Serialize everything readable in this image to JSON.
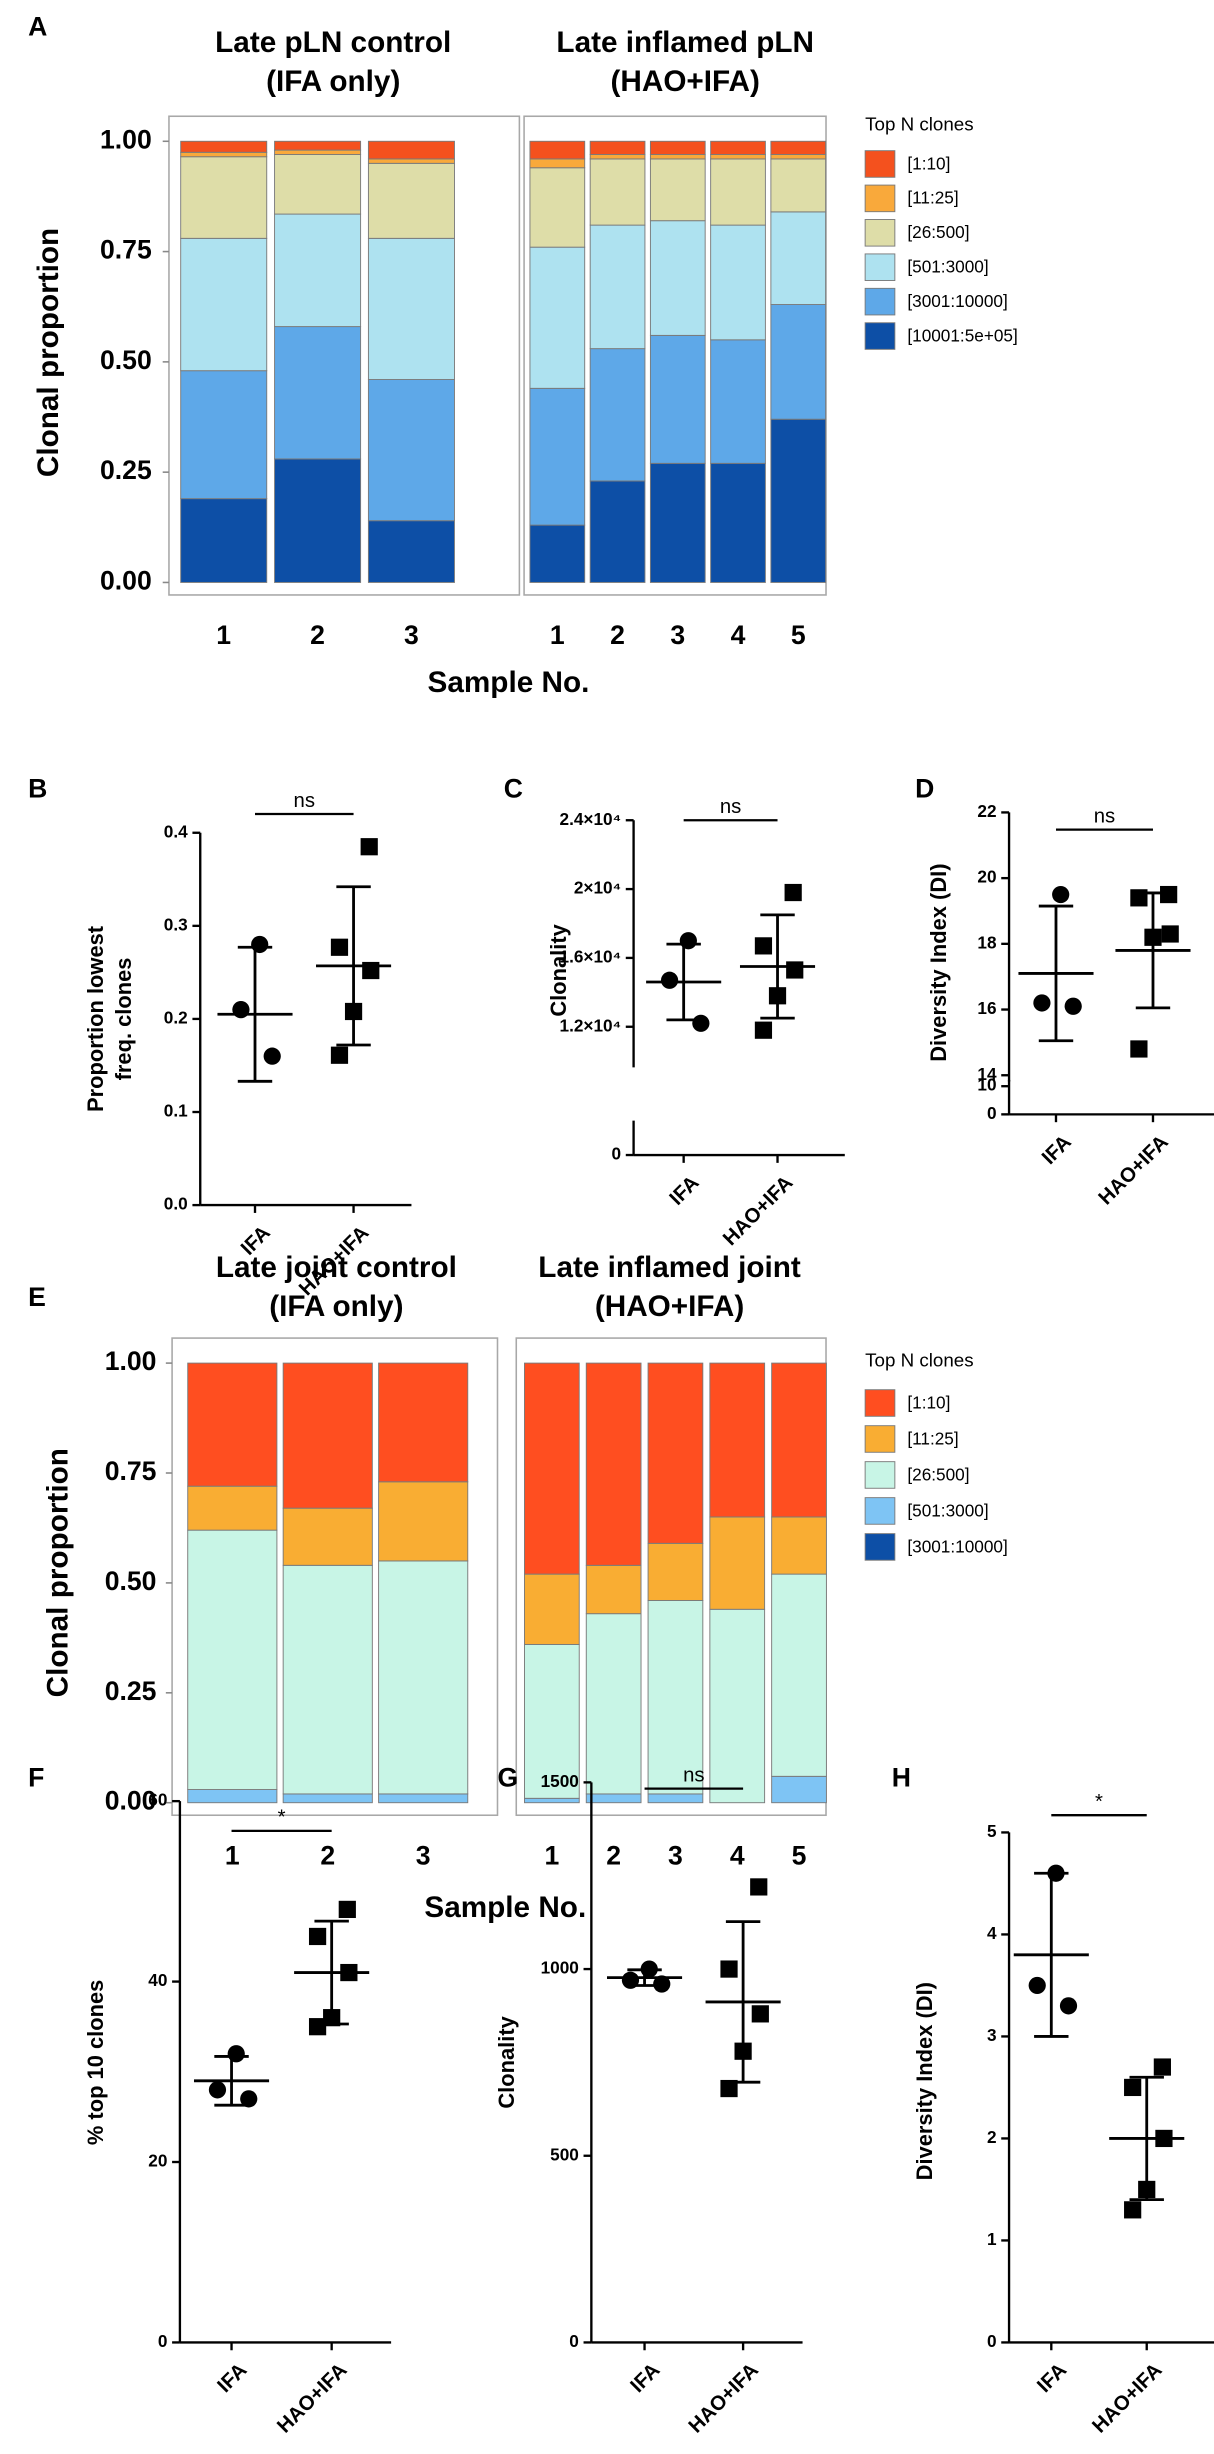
{
  "chart_data": [
    {
      "type": "stacked_bar",
      "panel": "A",
      "title": [
        "Late pLN control",
        "(IFA only)"
      ],
      "ylabel": "Clonal proportion",
      "xlabel": "Sample No.",
      "categories": [
        "1",
        "2",
        "3"
      ],
      "ylim": [
        0,
        1
      ],
      "yticks": [
        {
          "value": 0,
          "label": "0.00"
        },
        0.25,
        {
          "value": 0.5,
          "label": "0.50"
        },
        0.75,
        {
          "value": 1,
          "label": "1.00"
        }
      ],
      "series": [
        {
          "color": "#f4511e",
          "values": [
            0.025,
            0.02,
            0.04
          ]
        },
        {
          "color": "#f9a93b",
          "values": [
            0.01,
            0.01,
            0.01
          ]
        },
        {
          "color": "#dedda8",
          "values": [
            0.185,
            0.135,
            0.17
          ]
        },
        {
          "color": "#aee2f0",
          "values": [
            0.3,
            0.255,
            0.32
          ]
        },
        {
          "color": "#5ea8e8",
          "values": [
            0.29,
            0.3,
            0.32
          ]
        },
        {
          "color": "#0d4fa6",
          "values": [
            0.19,
            0.28,
            0.14
          ]
        }
      ]
    },
    {
      "type": "stacked_bar",
      "title": [
        "Late inflamed pLN",
        "(HAO+IFA)"
      ],
      "legend_title": "Top N clones",
      "categories": [
        "1",
        "2",
        "3",
        "4",
        "5"
      ],
      "ylim": [
        0,
        1
      ],
      "series": [
        {
          "name": "[1:10]",
          "color": "#f4511e",
          "values": [
            0.04,
            0.03,
            0.03,
            0.03,
            0.03
          ]
        },
        {
          "name": "[11:25]",
          "color": "#f9a93b",
          "values": [
            0.02,
            0.01,
            0.01,
            0.01,
            0.01
          ]
        },
        {
          "name": "[26:500]",
          "color": "#dedda8",
          "values": [
            0.18,
            0.15,
            0.14,
            0.15,
            0.12
          ]
        },
        {
          "name": "[501:3000]",
          "color": "#aee2f0",
          "values": [
            0.32,
            0.28,
            0.26,
            0.26,
            0.21
          ]
        },
        {
          "name": "[3001:10000]",
          "color": "#5ea8e8",
          "values": [
            0.31,
            0.3,
            0.29,
            0.28,
            0.26
          ]
        },
        {
          "name": "[10001:5e+05]",
          "color": "#0d4fa6",
          "values": [
            0.13,
            0.23,
            0.27,
            0.27,
            0.37
          ]
        }
      ]
    },
    {
      "type": "dot",
      "panel": "B",
      "ylabel": [
        "Proportion lowest",
        "freq. clones"
      ],
      "categories": [
        "IFA",
        "HAO+IFA"
      ],
      "markers": [
        "circle",
        "square"
      ],
      "color": "#000000",
      "points": [
        [
          0.28,
          0.21,
          0.16
        ],
        [
          0.385,
          0.277,
          0.252,
          0.208,
          0.161
        ]
      ],
      "means": [
        0.205,
        0.257
      ],
      "sd": [
        0.072,
        0.085
      ],
      "ylim": [
        0,
        0.4
      ],
      "yticks": [
        {
          "value": 0,
          "label": "0.0"
        },
        0.1,
        0.2,
        0.3,
        0.4
      ],
      "annotation": "ns"
    },
    {
      "type": "dot",
      "panel": "C",
      "ylabel": "Clonality",
      "categories": [
        "IFA",
        "HAO+IFA"
      ],
      "markers": [
        "circle",
        "square"
      ],
      "color": "#000000",
      "points": [
        [
          17000,
          14700,
          12200
        ],
        [
          19800,
          16700,
          15300,
          13800,
          11800
        ]
      ],
      "means": [
        14600,
        15500
      ],
      "sd": [
        2200,
        3000
      ],
      "ylim": [
        0,
        24000
      ],
      "ybreak": [
        2000,
        10000
      ],
      "yticks": [
        0,
        {
          "value": 12000,
          "label": "1.2×10⁴"
        },
        {
          "value": 16000,
          "label": "1.6×10⁴"
        },
        {
          "value": 20000,
          "label": "2×10⁴"
        },
        {
          "value": 24000,
          "label": "2.4×10⁴"
        }
      ],
      "annotation": "ns"
    },
    {
      "type": "dot",
      "panel": "D",
      "ylabel": "Diversity Index (DI)",
      "categories": [
        "IFA",
        "HAO+IFA"
      ],
      "markers": [
        "circle",
        "square"
      ],
      "color": "#000000",
      "points": [
        [
          19.5,
          16.2,
          16.1
        ],
        [
          19.5,
          19.4,
          18.3,
          18.2,
          14.8
        ]
      ],
      "means": [
        17.1,
        17.8
      ],
      "sd": [
        2.05,
        1.75
      ],
      "ylim": [
        0,
        22
      ],
      "ybreak": [
        10,
        14
      ],
      "yticks": [
        0,
        10,
        14,
        16,
        18,
        20,
        22
      ],
      "annotation": "ns"
    },
    {
      "type": "stacked_bar",
      "panel": "E",
      "title": [
        "Late joint control",
        "(IFA only)"
      ],
      "ylabel": "Clonal proportion",
      "xlabel": "Sample No.",
      "categories": [
        "1",
        "2",
        "3"
      ],
      "ylim": [
        0,
        1
      ],
      "yticks": [
        {
          "value": 0,
          "label": "0.00"
        },
        0.25,
        {
          "value": 0.5,
          "label": "0.50"
        },
        0.75,
        {
          "value": 1,
          "label": "1.00"
        }
      ],
      "series": [
        {
          "color": "#ff4e20",
          "values": [
            0.28,
            0.33,
            0.27
          ]
        },
        {
          "color": "#f9ad33",
          "values": [
            0.1,
            0.13,
            0.18
          ]
        },
        {
          "color": "#c8f5e6",
          "values": [
            0.59,
            0.52,
            0.53
          ]
        },
        {
          "color": "#7ec4f4",
          "values": [
            0.03,
            0.02,
            0.02
          ]
        },
        {
          "color": "#0d4fa6",
          "values": [
            0,
            0,
            0
          ]
        }
      ]
    },
    {
      "type": "stacked_bar",
      "title": [
        "Late inflamed joint",
        "(HAO+IFA)"
      ],
      "legend_title": "Top N clones",
      "categories": [
        "1",
        "2",
        "3",
        "4",
        "5"
      ],
      "ylim": [
        0,
        1
      ],
      "series": [
        {
          "name": "[1:10]",
          "color": "#ff4e20",
          "values": [
            0.48,
            0.46,
            0.41,
            0.35,
            0.35
          ]
        },
        {
          "name": "[11:25]",
          "color": "#f9ad33",
          "values": [
            0.16,
            0.11,
            0.13,
            0.21,
            0.13
          ]
        },
        {
          "name": "[26:500]",
          "color": "#c8f5e6",
          "values": [
            0.35,
            0.41,
            0.44,
            0.44,
            0.46
          ]
        },
        {
          "name": "[501:3000]",
          "color": "#7ec4f4",
          "values": [
            0.01,
            0.02,
            0.02,
            0,
            0.06
          ]
        },
        {
          "name": "[3001:10000]",
          "color": "#0d4fa6",
          "values": [
            0,
            0,
            0,
            0,
            0
          ]
        }
      ]
    },
    {
      "type": "dot",
      "panel": "F",
      "ylabel": "% top 10 clones",
      "categories": [
        "IFA",
        "HAO+IFA"
      ],
      "markers": [
        "circle",
        "square"
      ],
      "color": "#000000",
      "points": [
        [
          32,
          28,
          27
        ],
        [
          48,
          45,
          41,
          36,
          35
        ]
      ],
      "means": [
        29,
        41
      ],
      "sd": [
        2.7,
        5.7
      ],
      "ylim": [
        0,
        60
      ],
      "yticks": [
        0,
        20,
        40,
        60
      ],
      "annotation": "*"
    },
    {
      "type": "dot",
      "panel": "G",
      "ylabel": "Clonality",
      "categories": [
        "IFA",
        "HAO+IFA"
      ],
      "markers": [
        "circle",
        "square"
      ],
      "color": "#000000",
      "points": [
        [
          1000,
          970,
          960
        ],
        [
          1220,
          1000,
          880,
          780,
          680
        ]
      ],
      "means": [
        977,
        912
      ],
      "sd": [
        21,
        215
      ],
      "ylim": [
        0,
        1500
      ],
      "yticks": [
        0,
        500,
        1000,
        1500
      ],
      "annotation": "ns"
    },
    {
      "type": "dot",
      "panel": "H",
      "ylabel": "Diversity Index (DI)",
      "categories": [
        "IFA",
        "HAO+IFA"
      ],
      "markers": [
        "circle",
        "square"
      ],
      "color": "#000000",
      "points": [
        [
          4.6,
          3.5,
          3.3
        ],
        [
          2.7,
          2.5,
          2.0,
          1.5,
          1.3
        ]
      ],
      "means": [
        3.8,
        2.0
      ],
      "sd": [
        0.8,
        0.6
      ],
      "ylim": [
        0,
        5
      ],
      "yticks": [
        0,
        1,
        2,
        3,
        4,
        5
      ],
      "annotation": "*"
    }
  ]
}
